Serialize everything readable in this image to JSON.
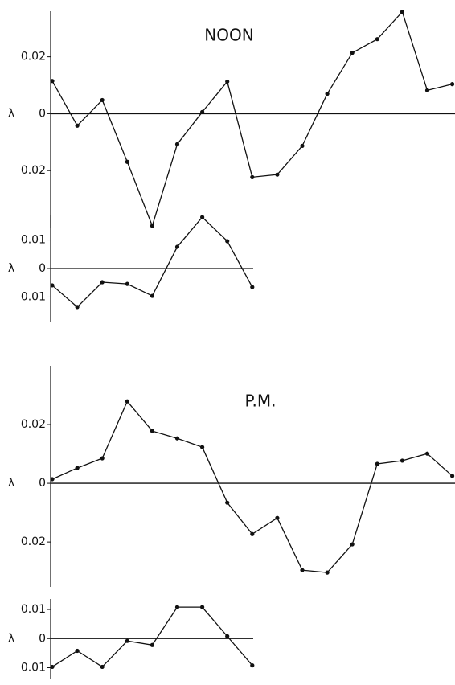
{
  "chart_data": [
    {
      "type": "line",
      "title": "NOON",
      "ylabel": "λ",
      "categories": [
        null,
        null,
        null,
        null,
        null,
        null,
        null,
        null,
        null,
        null,
        null,
        null,
        null,
        null,
        null,
        null,
        null
      ],
      "values": [
        0.0115,
        -0.0042,
        0.0048,
        -0.0169,
        -0.0394,
        -0.0107,
        0.0006,
        0.0113,
        -0.0223,
        -0.0214,
        -0.0113,
        0.007,
        0.0214,
        0.0262,
        0.0358,
        0.0082,
        0.0104
      ],
      "color": "#111111",
      "ylim": [
        -0.04,
        0.036
      ],
      "yticks": [
        0.02,
        0,
        {
          "value": -0.02,
          "label": "0.02"
        }
      ]
    },
    {
      "type": "line",
      "ylabel": "λ",
      "categories": [
        null,
        null,
        null,
        null,
        null,
        null,
        null,
        null,
        null
      ],
      "values": [
        -0.0059,
        -0.0135,
        -0.0048,
        -0.0054,
        -0.0096,
        0.0076,
        0.018,
        0.0096,
        -0.0065
      ],
      "color": "#111111",
      "ylim": [
        -0.0186,
        0.0186
      ],
      "yticks": [
        0.01,
        0,
        {
          "value": -0.01,
          "label": "0.01"
        }
      ]
    },
    {
      "type": "line",
      "title": "P.M.",
      "ylabel": "λ",
      "categories": [
        null,
        null,
        null,
        null,
        null,
        null,
        null,
        null,
        null,
        null,
        null,
        null,
        null,
        null,
        null,
        null,
        null
      ],
      "values": [
        0.0014,
        0.0052,
        0.0085,
        0.0279,
        0.0178,
        0.0153,
        0.0123,
        -0.0066,
        -0.0173,
        -0.0118,
        -0.0296,
        -0.0304,
        -0.0208,
        0.0066,
        0.0077,
        0.0101,
        0.0025
      ],
      "color": "#111111",
      "ylim": [
        -0.0353,
        0.04
      ],
      "yticks": [
        0.02,
        0,
        {
          "value": -0.02,
          "label": "0.02"
        }
      ]
    },
    {
      "type": "line",
      "ylabel": "λ",
      "categories": [
        null,
        null,
        null,
        null,
        null,
        null,
        null,
        null,
        null
      ],
      "values": [
        -0.0097,
        -0.0042,
        -0.0097,
        -0.0008,
        -0.0022,
        0.0108,
        0.0108,
        0.0008,
        -0.0092
      ],
      "color": "#111111",
      "ylim": [
        -0.014,
        0.0136
      ],
      "yticks": [
        0.01,
        0,
        {
          "value": -0.01,
          "label": "0.01"
        }
      ]
    }
  ]
}
